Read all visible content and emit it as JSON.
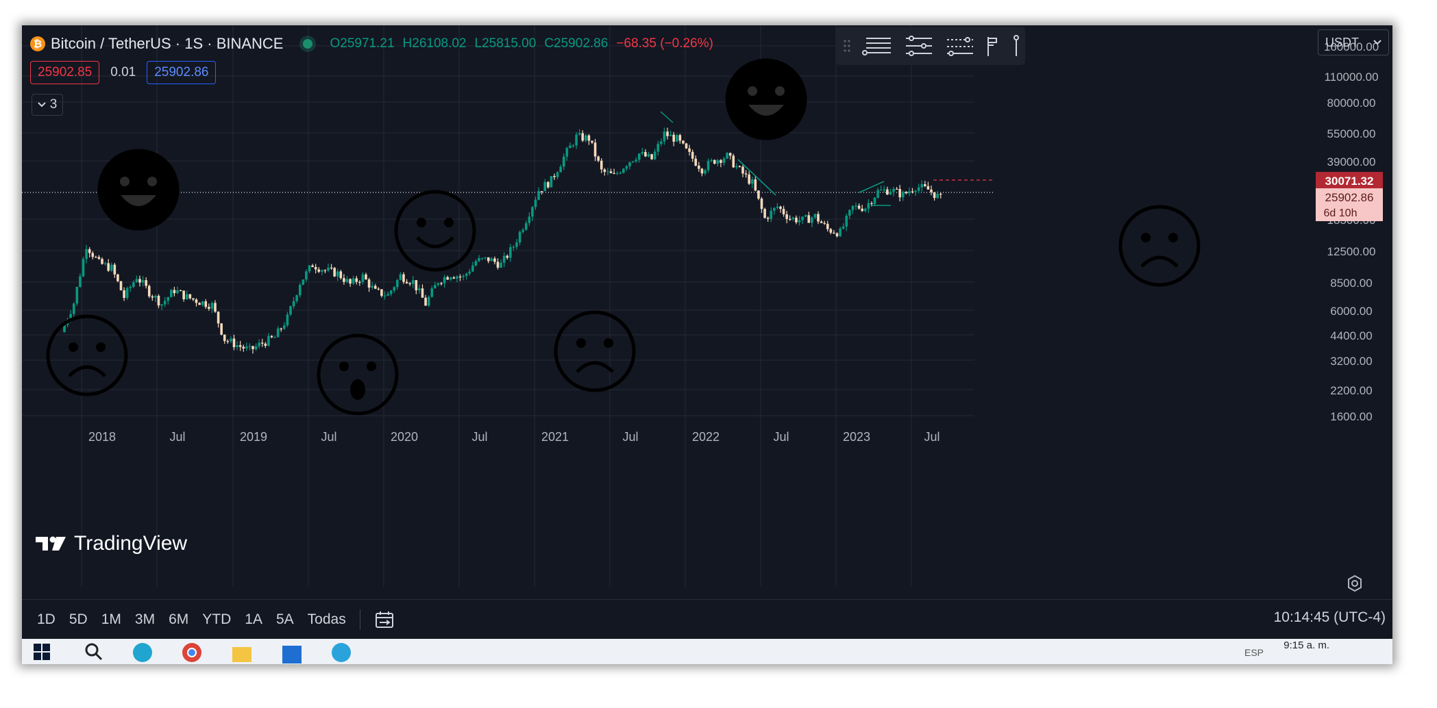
{
  "header": {
    "symbol": "Bitcoin / TetherUS · 1S · BINANCE",
    "open": "O25971.21",
    "high": "H26108.02",
    "low": "L25815.00",
    "close": "C25902.86",
    "change": "−68.35 (−0.26%)"
  },
  "trade": {
    "sell_price": "25902.85",
    "spread": "0.01",
    "buy_price": "25902.86"
  },
  "indicators_collapsed_count": "3",
  "currency_selector": "USDT",
  "logo_text": "TradingView",
  "timeframes": [
    "1D",
    "5D",
    "1M",
    "3M",
    "6M",
    "YTD",
    "1A",
    "5A",
    "Todas"
  ],
  "clock": "10:14:45 (UTC-4)",
  "taskbar": {
    "time": "9:15 a. m.",
    "lang": "ESP"
  },
  "colors": {
    "up": "#089981",
    "down": "#f5d9bc",
    "background": "#131722",
    "grid": "#252936",
    "last_price_bg": "#f7c7c7",
    "high_price_bg": "#b22833"
  },
  "icons": [
    "bitcoin-icon",
    "drag-handle-icon",
    "horizontal-lines-icon",
    "parallel-channel-icon",
    "trend-angle-icon",
    "fib-icon",
    "vertical-line-icon",
    "settings-gear-icon",
    "date-range-icon",
    "happy-face-icon",
    "sad-face-icon",
    "surprised-face-icon"
  ],
  "chart_data": {
    "type": "candlestick",
    "x_axis_ticks": [
      "2018",
      "Jul",
      "2019",
      "Jul",
      "2020",
      "Jul",
      "2021",
      "Jul",
      "2022",
      "Jul",
      "2023",
      "Jul"
    ],
    "y_axis_ticks": [
      "160000.00",
      "110000.00",
      "80000.00",
      "55000.00",
      "39000.00",
      "18500.00",
      "12500.00",
      "8500.00",
      "6000.00",
      "4400.00",
      "3200.00",
      "2200.00",
      "1600.00"
    ],
    "y_scale": "log",
    "last_price": {
      "value": "25902.86",
      "countdown": "6d 10h"
    },
    "high_marker": "30071.32",
    "weekly_close_path": [
      [
        "2017-10",
        4400
      ],
      [
        "2017-11",
        6500
      ],
      [
        "2017-12",
        14000
      ],
      [
        "2018-01",
        11000
      ],
      [
        "2018-02",
        10300
      ],
      [
        "2018-03",
        7000
      ],
      [
        "2018-04",
        9200
      ],
      [
        "2018-05",
        7500
      ],
      [
        "2018-06",
        6400
      ],
      [
        "2018-07",
        7700
      ],
      [
        "2018-08",
        7000
      ],
      [
        "2018-09",
        6600
      ],
      [
        "2018-10",
        6300
      ],
      [
        "2018-11",
        4000
      ],
      [
        "2018-12",
        3700
      ],
      [
        "2019-01",
        3450
      ],
      [
        "2019-02",
        3800
      ],
      [
        "2019-03",
        4100
      ],
      [
        "2019-04",
        5300
      ],
      [
        "2019-05",
        8500
      ],
      [
        "2019-06",
        10800
      ],
      [
        "2019-07",
        10000
      ],
      [
        "2019-08",
        9600
      ],
      [
        "2019-09",
        8300
      ],
      [
        "2019-10",
        9200
      ],
      [
        "2019-11",
        7500
      ],
      [
        "2019-12",
        7200
      ],
      [
        "2020-01",
        9300
      ],
      [
        "2020-02",
        8600
      ],
      [
        "2020-03",
        6400
      ],
      [
        "2020-04",
        8700
      ],
      [
        "2020-05",
        9500
      ],
      [
        "2020-06",
        9100
      ],
      [
        "2020-07",
        11300
      ],
      [
        "2020-08",
        11600
      ],
      [
        "2020-09",
        10800
      ],
      [
        "2020-10",
        13800
      ],
      [
        "2020-11",
        19700
      ],
      [
        "2020-12",
        29000
      ],
      [
        "2021-01",
        33000
      ],
      [
        "2021-02",
        45000
      ],
      [
        "2021-03",
        58800
      ],
      [
        "2021-04",
        57700
      ],
      [
        "2021-05",
        37300
      ],
      [
        "2021-06",
        35000
      ],
      [
        "2021-07",
        41500
      ],
      [
        "2021-08",
        47100
      ],
      [
        "2021-09",
        43800
      ],
      [
        "2021-10",
        61300
      ],
      [
        "2021-11",
        57000
      ],
      [
        "2021-12",
        46300
      ],
      [
        "2022-01",
        38500
      ],
      [
        "2022-02",
        43200
      ],
      [
        "2022-03",
        45500
      ],
      [
        "2022-04",
        37700
      ],
      [
        "2022-05",
        31800
      ],
      [
        "2022-06",
        19900
      ],
      [
        "2022-07",
        23300
      ],
      [
        "2022-08",
        20000
      ],
      [
        "2022-09",
        19400
      ],
      [
        "2022-10",
        20500
      ],
      [
        "2022-11",
        17200
      ],
      [
        "2022-12",
        16500
      ],
      [
        "2023-01",
        23100
      ],
      [
        "2023-02",
        23100
      ],
      [
        "2023-03",
        28500
      ],
      [
        "2023-04",
        29200
      ],
      [
        "2023-05",
        27200
      ],
      [
        "2023-06",
        30500
      ],
      [
        "2023-07",
        29200
      ],
      [
        "2023-08",
        26000
      ]
    ],
    "annotations": [
      "sad-face",
      "happy-face",
      "surprised-face",
      "happy-face",
      "sad-face",
      "happy-face",
      "sad-face"
    ]
  }
}
